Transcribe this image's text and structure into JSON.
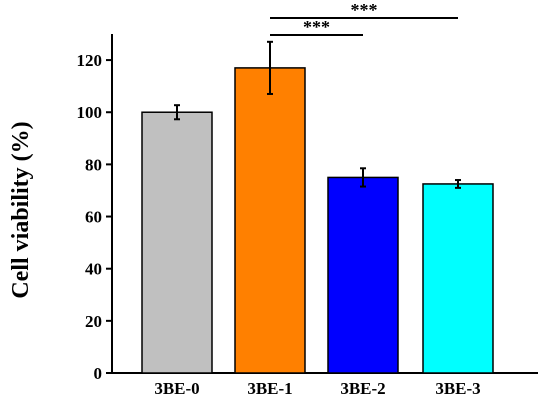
{
  "chart_data": {
    "type": "bar",
    "categories": [
      "3BE-0",
      "3BE-1",
      "3BE-2",
      "3BE-3"
    ],
    "values": [
      100,
      117,
      75,
      72.5
    ],
    "errors": [
      2.7,
      10,
      3.5,
      1.5
    ],
    "colors": [
      "#c0c0c0",
      "#ff8000",
      "#0000ff",
      "#00ffff"
    ],
    "ylabel": "Cell viability (%)",
    "ylim": [
      0,
      130
    ],
    "yticks": [
      0,
      20,
      40,
      60,
      80,
      100,
      120
    ],
    "grid": false,
    "significance": [
      {
        "from": "3BE-1",
        "to": "3BE-2",
        "label": "***"
      },
      {
        "from": "3BE-1",
        "to": "3BE-3",
        "label": "***"
      }
    ]
  }
}
